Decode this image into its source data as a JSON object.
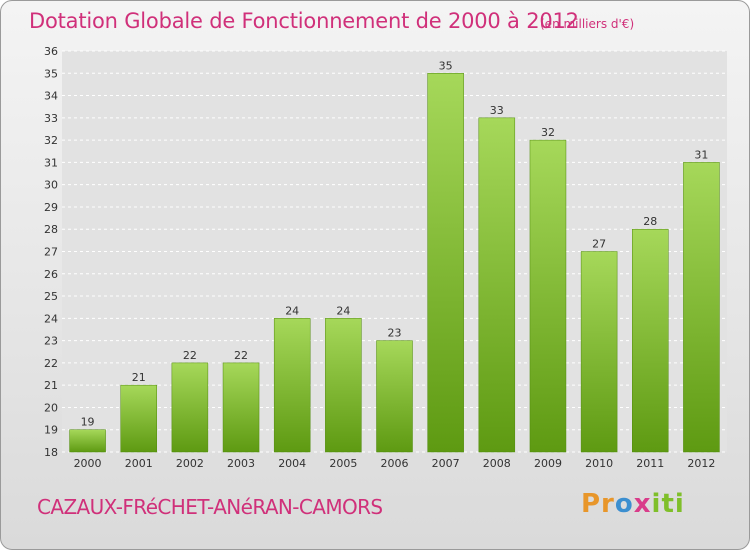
{
  "title": "Dotation Globale de Fonctionnement de 2000 à 2012",
  "unit": "(en milliers d'€)",
  "commune": "CAZAUX-FRéCHET-ANéRAN-CAMORS",
  "logo": "Proxiti",
  "colors": {
    "accent": "#d0307a",
    "bar_light": "#a6d85a",
    "bar_dark": "#5e9a12",
    "grid": "#ffffff",
    "axis_text": "#333333"
  },
  "chart_data": {
    "type": "bar",
    "categories": [
      "2000",
      "2001",
      "2002",
      "2003",
      "2004",
      "2005",
      "2006",
      "2007",
      "2008",
      "2009",
      "2010",
      "2011",
      "2012"
    ],
    "values": [
      19,
      21,
      22,
      22,
      24,
      24,
      23,
      35,
      33,
      32,
      27,
      28,
      31
    ],
    "value_labels": [
      "19",
      "21",
      "22",
      "22",
      "24",
      "24",
      "23",
      "35",
      "33",
      "32",
      "27",
      "28",
      "31"
    ],
    "ylim": [
      18,
      36
    ],
    "yticks": [
      18,
      19,
      20,
      21,
      22,
      23,
      24,
      25,
      26,
      27,
      28,
      29,
      30,
      31,
      32,
      33,
      34,
      35,
      36
    ],
    "grid": true,
    "title": "Dotation Globale de Fonctionnement de 2000 à 2012",
    "xlabel": "",
    "ylabel": ""
  }
}
